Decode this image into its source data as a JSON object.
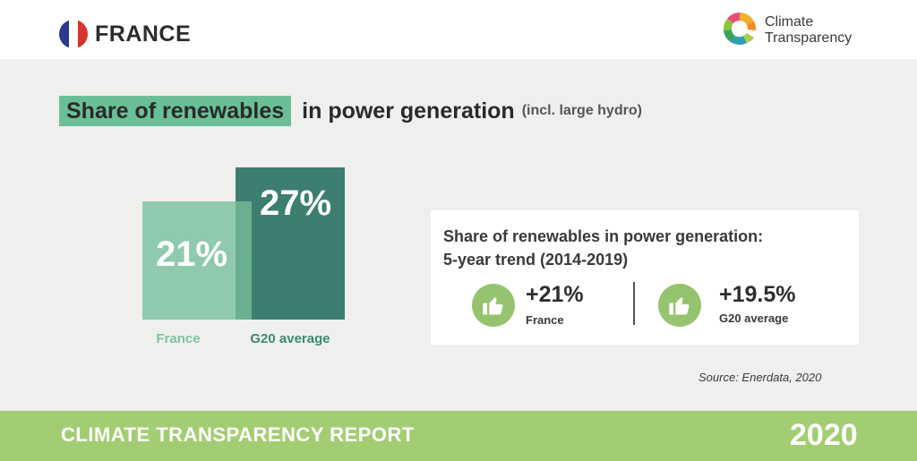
{
  "header": {
    "country": "FRANCE",
    "flag_colors": [
      "#2a3a8c",
      "#ffffff",
      "#d8322f"
    ],
    "logo_line1": "Climate",
    "logo_line2": "Transparency",
    "logo_icon": "climate-transparency-logo"
  },
  "title": {
    "highlight": "Share of renewables",
    "rest": "in power generation",
    "note": "(incl. large hydro)"
  },
  "chart_data": {
    "type": "bar",
    "categories": [
      "France",
      "G20 average"
    ],
    "values": [
      21,
      27
    ],
    "value_labels": [
      "21%",
      "27%"
    ],
    "colors": [
      "#8fcaad",
      "#3c7e6f"
    ]
  },
  "trend": {
    "title_line1": "Share of renewables in power generation:",
    "title_line2": "5-year trend (2014-2019)",
    "items": [
      {
        "value": "+21%",
        "label": "France",
        "icon": "thumbs-up-icon"
      },
      {
        "value": "+19.5%",
        "label": "G20 average",
        "icon": "thumbs-up-icon"
      }
    ]
  },
  "source": "Source: Enerdata, 2020",
  "footer": {
    "left": "CLIMATE TRANSPARENCY REPORT",
    "right": "2020"
  }
}
